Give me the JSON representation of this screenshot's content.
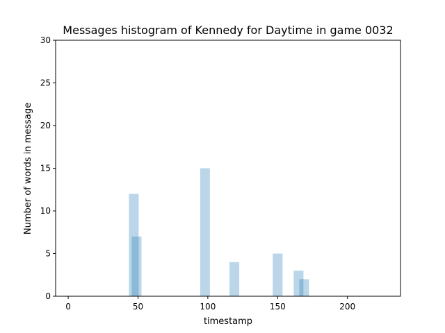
{
  "chart_data": {
    "type": "bar",
    "title": "Messages histogram of Kennedy for Daytime in game 0032",
    "xlabel": "timestamp",
    "ylabel": "Number of words in message",
    "xlim": [
      -9,
      238
    ],
    "ylim": [
      0,
      30
    ],
    "xticks": [
      0,
      50,
      100,
      150,
      200
    ],
    "yticks": [
      0,
      5,
      10,
      15,
      20,
      25,
      30
    ],
    "bar_width": 7,
    "bar_color": "#1f77b4",
    "bar_opacity": 0.3,
    "bars": [
      {
        "x": 47,
        "y": 12
      },
      {
        "x": 49,
        "y": 7
      },
      {
        "x": 98,
        "y": 15
      },
      {
        "x": 119,
        "y": 4
      },
      {
        "x": 150,
        "y": 5
      },
      {
        "x": 165,
        "y": 3
      },
      {
        "x": 169,
        "y": 2
      }
    ],
    "grid": false,
    "legend": "none"
  }
}
